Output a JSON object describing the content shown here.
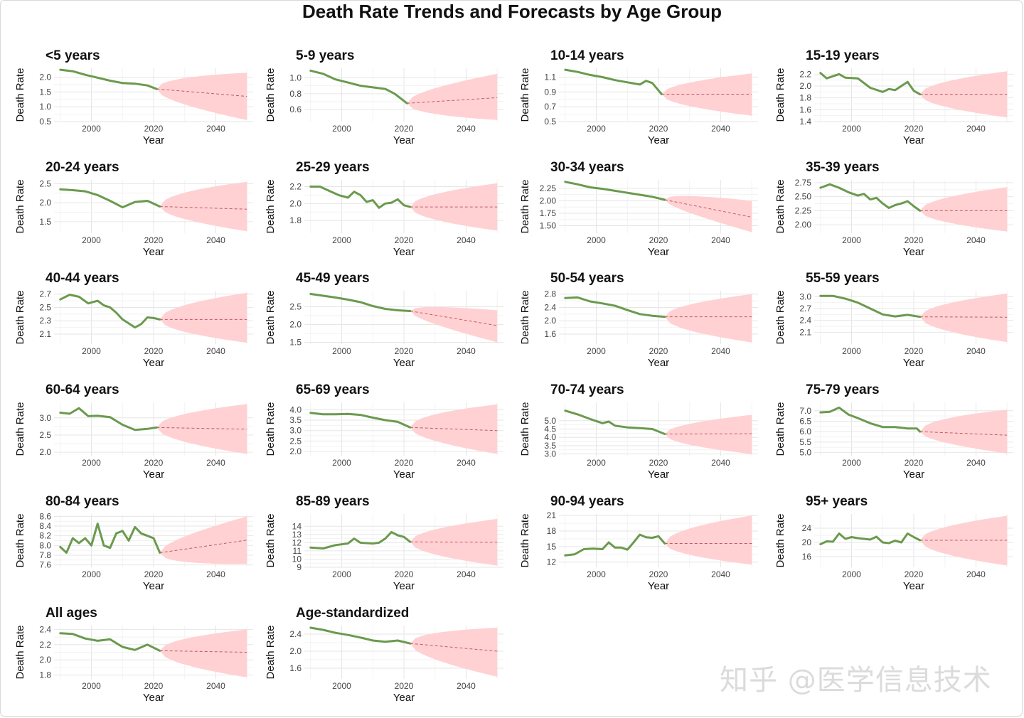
{
  "title": "Death Rate Trends and Forecasts by Age Group",
  "watermark": "知乎 @医学信息技术",
  "colors": {
    "history": "#6a9a4e",
    "forecast_band": "#ffd1d3",
    "forecast_line": "#c25a66"
  },
  "axis": {
    "xlabel": "Year",
    "ylabel": "Death Rate",
    "xlim": [
      1988,
      2052
    ],
    "xticks": [
      2000,
      2020,
      2040
    ]
  },
  "chart_data": [
    {
      "type": "line",
      "title": "<5 years",
      "ylim": [
        0.5,
        2.3
      ],
      "yticks": [
        "0.5",
        "1.0",
        "1.5",
        "2.0"
      ],
      "forecast_end": 1.35,
      "band_end": [
        0.55,
        2.15
      ],
      "x": [
        1990,
        1994,
        1998,
        2002,
        2006,
        2010,
        2014,
        2018,
        2021
      ],
      "values": [
        2.25,
        2.2,
        2.08,
        1.98,
        1.88,
        1.8,
        1.78,
        1.72,
        1.6
      ]
    },
    {
      "type": "line",
      "title": "5-9 years",
      "ylim": [
        0.45,
        1.12
      ],
      "yticks": [
        "0.6",
        "0.8",
        "1.0"
      ],
      "forecast_end": 0.75,
      "band_end": [
        0.47,
        1.05
      ],
      "x": [
        1990,
        1994,
        1998,
        2002,
        2006,
        2010,
        2014,
        2017,
        2021
      ],
      "values": [
        1.09,
        1.05,
        0.98,
        0.94,
        0.9,
        0.88,
        0.86,
        0.8,
        0.68
      ]
    },
    {
      "type": "line",
      "title": "10-14 years",
      "ylim": [
        0.5,
        1.22
      ],
      "yticks": [
        "0.5",
        "0.7",
        "0.9",
        "1.1"
      ],
      "forecast_end": 0.87,
      "band_end": [
        0.58,
        1.15
      ],
      "x": [
        1990,
        1994,
        1998,
        2002,
        2006,
        2010,
        2014,
        2016,
        2018,
        2021
      ],
      "values": [
        1.2,
        1.17,
        1.13,
        1.1,
        1.06,
        1.03,
        1.0,
        1.05,
        1.02,
        0.87
      ]
    },
    {
      "type": "line",
      "title": "15-19 years",
      "ylim": [
        1.4,
        2.3
      ],
      "yticks": [
        "1.4",
        "1.6",
        "1.8",
        "2.0",
        "2.2"
      ],
      "forecast_end": 1.86,
      "band_end": [
        1.47,
        2.25
      ],
      "x": [
        1990,
        1992,
        1996,
        1998,
        2002,
        2006,
        2010,
        2012,
        2014,
        2018,
        2020,
        2022
      ],
      "values": [
        2.22,
        2.13,
        2.2,
        2.14,
        2.13,
        1.97,
        1.9,
        1.95,
        1.93,
        2.07,
        1.92,
        1.86
      ]
    },
    {
      "type": "line",
      "title": "20-24 years",
      "ylim": [
        1.2,
        2.6
      ],
      "yticks": [
        "1.5",
        "2.0",
        "2.5"
      ],
      "forecast_end": 1.83,
      "band_end": [
        1.25,
        2.55
      ],
      "x": [
        1990,
        1994,
        1998,
        2002,
        2006,
        2010,
        2014,
        2018,
        2022
      ],
      "values": [
        2.35,
        2.33,
        2.3,
        2.2,
        2.05,
        1.88,
        2.02,
        2.05,
        1.9
      ]
    },
    {
      "type": "line",
      "title": "25-29 years",
      "ylim": [
        1.65,
        2.28
      ],
      "yticks": [
        "1.8",
        "2.0",
        "2.2"
      ],
      "forecast_end": 1.96,
      "band_end": [
        1.68,
        2.24
      ],
      "x": [
        1990,
        1993,
        1996,
        1999,
        2002,
        2004,
        2006,
        2008,
        2010,
        2012,
        2014,
        2016,
        2018,
        2020,
        2022
      ],
      "values": [
        2.2,
        2.2,
        2.15,
        2.1,
        2.07,
        2.14,
        2.1,
        2.02,
        2.04,
        1.95,
        2.0,
        2.01,
        2.05,
        1.98,
        1.96
      ]
    },
    {
      "type": "line",
      "title": "30-34 years",
      "ylim": [
        1.35,
        2.42
      ],
      "yticks": [
        "1.50",
        "1.75",
        "2.00",
        "2.25"
      ],
      "forecast_end": 1.67,
      "band_end": [
        1.37,
        2.0
      ],
      "x": [
        1990,
        1994,
        1998,
        2002,
        2006,
        2010,
        2014,
        2018,
        2022
      ],
      "values": [
        2.38,
        2.33,
        2.27,
        2.24,
        2.2,
        2.16,
        2.12,
        2.08,
        2.02
      ]
    },
    {
      "type": "line",
      "title": "35-39 years",
      "ylim": [
        1.85,
        2.8
      ],
      "yticks": [
        "2.00",
        "2.25",
        "2.50",
        "2.75"
      ],
      "forecast_end": 2.25,
      "band_end": [
        1.88,
        2.67
      ],
      "x": [
        1990,
        1993,
        1996,
        1999,
        2002,
        2004,
        2006,
        2008,
        2010,
        2012,
        2014,
        2016,
        2018,
        2020,
        2022
      ],
      "values": [
        2.66,
        2.72,
        2.66,
        2.58,
        2.52,
        2.55,
        2.45,
        2.48,
        2.38,
        2.3,
        2.35,
        2.38,
        2.42,
        2.33,
        2.25
      ]
    },
    {
      "type": "line",
      "title": "40-44 years",
      "ylim": [
        1.95,
        2.75
      ],
      "yticks": [
        "2.1",
        "2.3",
        "2.5",
        "2.7"
      ],
      "forecast_end": 2.32,
      "band_end": [
        1.97,
        2.72
      ],
      "x": [
        1990,
        1993,
        1996,
        1999,
        2002,
        2004,
        2006,
        2008,
        2010,
        2012,
        2014,
        2016,
        2018,
        2020,
        2022
      ],
      "values": [
        2.62,
        2.69,
        2.66,
        2.56,
        2.6,
        2.53,
        2.5,
        2.42,
        2.32,
        2.26,
        2.2,
        2.25,
        2.35,
        2.34,
        2.32
      ]
    },
    {
      "type": "line",
      "title": "45-49 years",
      "ylim": [
        1.45,
        2.95
      ],
      "yticks": [
        "1.5",
        "2.0",
        "2.5"
      ],
      "forecast_end": 1.97,
      "band_end": [
        1.5,
        2.4
      ],
      "x": [
        1990,
        1994,
        1998,
        2002,
        2006,
        2010,
        2014,
        2018,
        2022
      ],
      "values": [
        2.86,
        2.81,
        2.76,
        2.7,
        2.63,
        2.52,
        2.44,
        2.4,
        2.38
      ]
    },
    {
      "type": "line",
      "title": "50-54 years",
      "ylim": [
        1.3,
        2.9
      ],
      "yticks": [
        "1.6",
        "2.0",
        "2.4",
        "2.8"
      ],
      "forecast_end": 2.12,
      "band_end": [
        1.35,
        2.8
      ],
      "x": [
        1990,
        1994,
        1998,
        2002,
        2006,
        2010,
        2014,
        2018,
        2022
      ],
      "values": [
        2.68,
        2.7,
        2.58,
        2.52,
        2.45,
        2.32,
        2.2,
        2.15,
        2.12
      ]
    },
    {
      "type": "line",
      "title": "55-59 years",
      "ylim": [
        1.8,
        3.15
      ],
      "yticks": [
        "2.1",
        "2.4",
        "2.7",
        "3.0"
      ],
      "forecast_end": 2.48,
      "band_end": [
        1.85,
        3.08
      ],
      "x": [
        1990,
        1994,
        1998,
        2002,
        2006,
        2010,
        2014,
        2018,
        2022
      ],
      "values": [
        3.02,
        3.02,
        2.95,
        2.85,
        2.7,
        2.55,
        2.5,
        2.54,
        2.49
      ]
    },
    {
      "type": "line",
      "title": "60-64 years",
      "ylim": [
        1.9,
        3.45
      ],
      "yticks": [
        "2.0",
        "2.5",
        "3.0"
      ],
      "forecast_end": 2.67,
      "band_end": [
        1.95,
        3.4
      ],
      "x": [
        1990,
        1993,
        1996,
        1999,
        2002,
        2006,
        2010,
        2014,
        2018,
        2021
      ],
      "values": [
        3.15,
        3.12,
        3.28,
        3.05,
        3.06,
        3.02,
        2.8,
        2.65,
        2.68,
        2.72
      ]
    },
    {
      "type": "line",
      "title": "65-69 years",
      "ylim": [
        1.8,
        4.35
      ],
      "yticks": [
        "2.0",
        "2.5",
        "3.0",
        "3.5",
        "4.0"
      ],
      "forecast_end": 3.0,
      "band_end": [
        1.88,
        4.25
      ],
      "x": [
        1990,
        1994,
        1998,
        2002,
        2006,
        2010,
        2014,
        2018,
        2022
      ],
      "values": [
        3.85,
        3.78,
        3.78,
        3.8,
        3.75,
        3.62,
        3.5,
        3.42,
        3.15
      ]
    },
    {
      "type": "line",
      "title": "70-74 years",
      "ylim": [
        2.9,
        6.1
      ],
      "yticks": [
        "3.0",
        "3.5",
        "4.0",
        "4.5",
        "5.0"
      ],
      "forecast_end": 4.22,
      "band_end": [
        3.0,
        5.35
      ],
      "x": [
        1990,
        1994,
        1998,
        2002,
        2004,
        2006,
        2010,
        2014,
        2018,
        2022
      ],
      "values": [
        5.6,
        5.38,
        5.1,
        4.85,
        4.95,
        4.7,
        4.6,
        4.55,
        4.5,
        4.2
      ]
    },
    {
      "type": "line",
      "title": "75-79 years",
      "ylim": [
        4.85,
        7.4
      ],
      "yticks": [
        "5.0",
        "5.5",
        "6.0",
        "6.5",
        "7.0"
      ],
      "forecast_end": 5.83,
      "band_end": [
        4.95,
        7.05
      ],
      "x": [
        1990,
        1993,
        1996,
        1999,
        2002,
        2006,
        2010,
        2014,
        2018,
        2021,
        2022
      ],
      "values": [
        6.92,
        6.95,
        7.15,
        6.82,
        6.65,
        6.4,
        6.22,
        6.22,
        6.15,
        6.15,
        6.0
      ]
    },
    {
      "type": "line",
      "title": "80-84 years",
      "ylim": [
        7.55,
        8.65
      ],
      "yticks": [
        "7.6",
        "7.8",
        "8.0",
        "8.2",
        "8.4",
        "8.6"
      ],
      "forecast_end": 8.11,
      "band_end": [
        7.62,
        8.6
      ],
      "x": [
        1990,
        1992,
        1994,
        1996,
        1998,
        2000,
        2002,
        2004,
        2006,
        2008,
        2010,
        2012,
        2014,
        2016,
        2018,
        2020,
        2022
      ],
      "values": [
        7.97,
        7.85,
        8.15,
        8.05,
        8.15,
        8.0,
        8.45,
        8.0,
        7.95,
        8.25,
        8.3,
        8.1,
        8.38,
        8.25,
        8.2,
        8.15,
        7.85
      ]
    },
    {
      "type": "line",
      "title": "85-89 years",
      "ylim": [
        9,
        15.5
      ],
      "yticks": [
        "9",
        "10",
        "11",
        "12",
        "13",
        "14"
      ],
      "forecast_end": 12.05,
      "band_end": [
        9.2,
        14.9
      ],
      "x": [
        1990,
        1994,
        1998,
        2002,
        2004,
        2006,
        2008,
        2010,
        2012,
        2014,
        2016,
        2018,
        2020,
        2022
      ],
      "values": [
        11.4,
        11.3,
        11.7,
        11.9,
        12.5,
        12.0,
        11.95,
        11.9,
        12.0,
        12.5,
        13.3,
        12.9,
        12.7,
        12.1
      ]
    },
    {
      "type": "line",
      "title": "90-94 years",
      "ylim": [
        11,
        21.3
      ],
      "yticks": [
        "12",
        "15",
        "18",
        "21"
      ],
      "forecast_end": 15.6,
      "band_end": [
        11.5,
        21.0
      ],
      "x": [
        1990,
        1993,
        1996,
        1999,
        2002,
        2004,
        2006,
        2008,
        2010,
        2012,
        2014,
        2016,
        2018,
        2020,
        2022
      ],
      "values": [
        13.3,
        13.5,
        14.5,
        14.6,
        14.5,
        15.8,
        14.8,
        14.8,
        14.4,
        15.8,
        17.3,
        16.8,
        16.7,
        17.0,
        15.6
      ]
    },
    {
      "type": "line",
      "title": "95+ years",
      "ylim": [
        13,
        28
      ],
      "yticks": [
        "16",
        "20",
        "24"
      ],
      "forecast_end": 20.6,
      "band_end": [
        13.5,
        27.5
      ],
      "x": [
        1990,
        1992,
        1994,
        1996,
        1998,
        2000,
        2002,
        2004,
        2006,
        2008,
        2010,
        2012,
        2014,
        2016,
        2018,
        2020,
        2022
      ],
      "values": [
        19.5,
        20.3,
        20.2,
        22.5,
        21.0,
        21.5,
        21.2,
        21.0,
        20.8,
        21.6,
        20.0,
        19.8,
        20.5,
        20.0,
        22.5,
        21.5,
        20.6
      ]
    },
    {
      "type": "line",
      "title": "All ages",
      "ylim": [
        1.75,
        2.45
      ],
      "yticks": [
        "1.8",
        "2.0",
        "2.2",
        "2.4"
      ],
      "forecast_end": 2.1,
      "band_end": [
        1.77,
        2.4
      ],
      "x": [
        1990,
        1994,
        1998,
        2002,
        2006,
        2010,
        2014,
        2018,
        2022
      ],
      "values": [
        2.35,
        2.34,
        2.28,
        2.25,
        2.27,
        2.17,
        2.13,
        2.2,
        2.12
      ]
    },
    {
      "type": "line",
      "title": "Age-standardized",
      "ylim": [
        1.35,
        2.6
      ],
      "yticks": [
        "1.6",
        "2.0",
        "2.4"
      ],
      "forecast_end": 2.0,
      "band_end": [
        1.4,
        2.55
      ],
      "x": [
        1990,
        1994,
        1998,
        2002,
        2006,
        2010,
        2014,
        2018,
        2022
      ],
      "values": [
        2.55,
        2.5,
        2.43,
        2.38,
        2.32,
        2.25,
        2.22,
        2.25,
        2.18
      ]
    }
  ]
}
